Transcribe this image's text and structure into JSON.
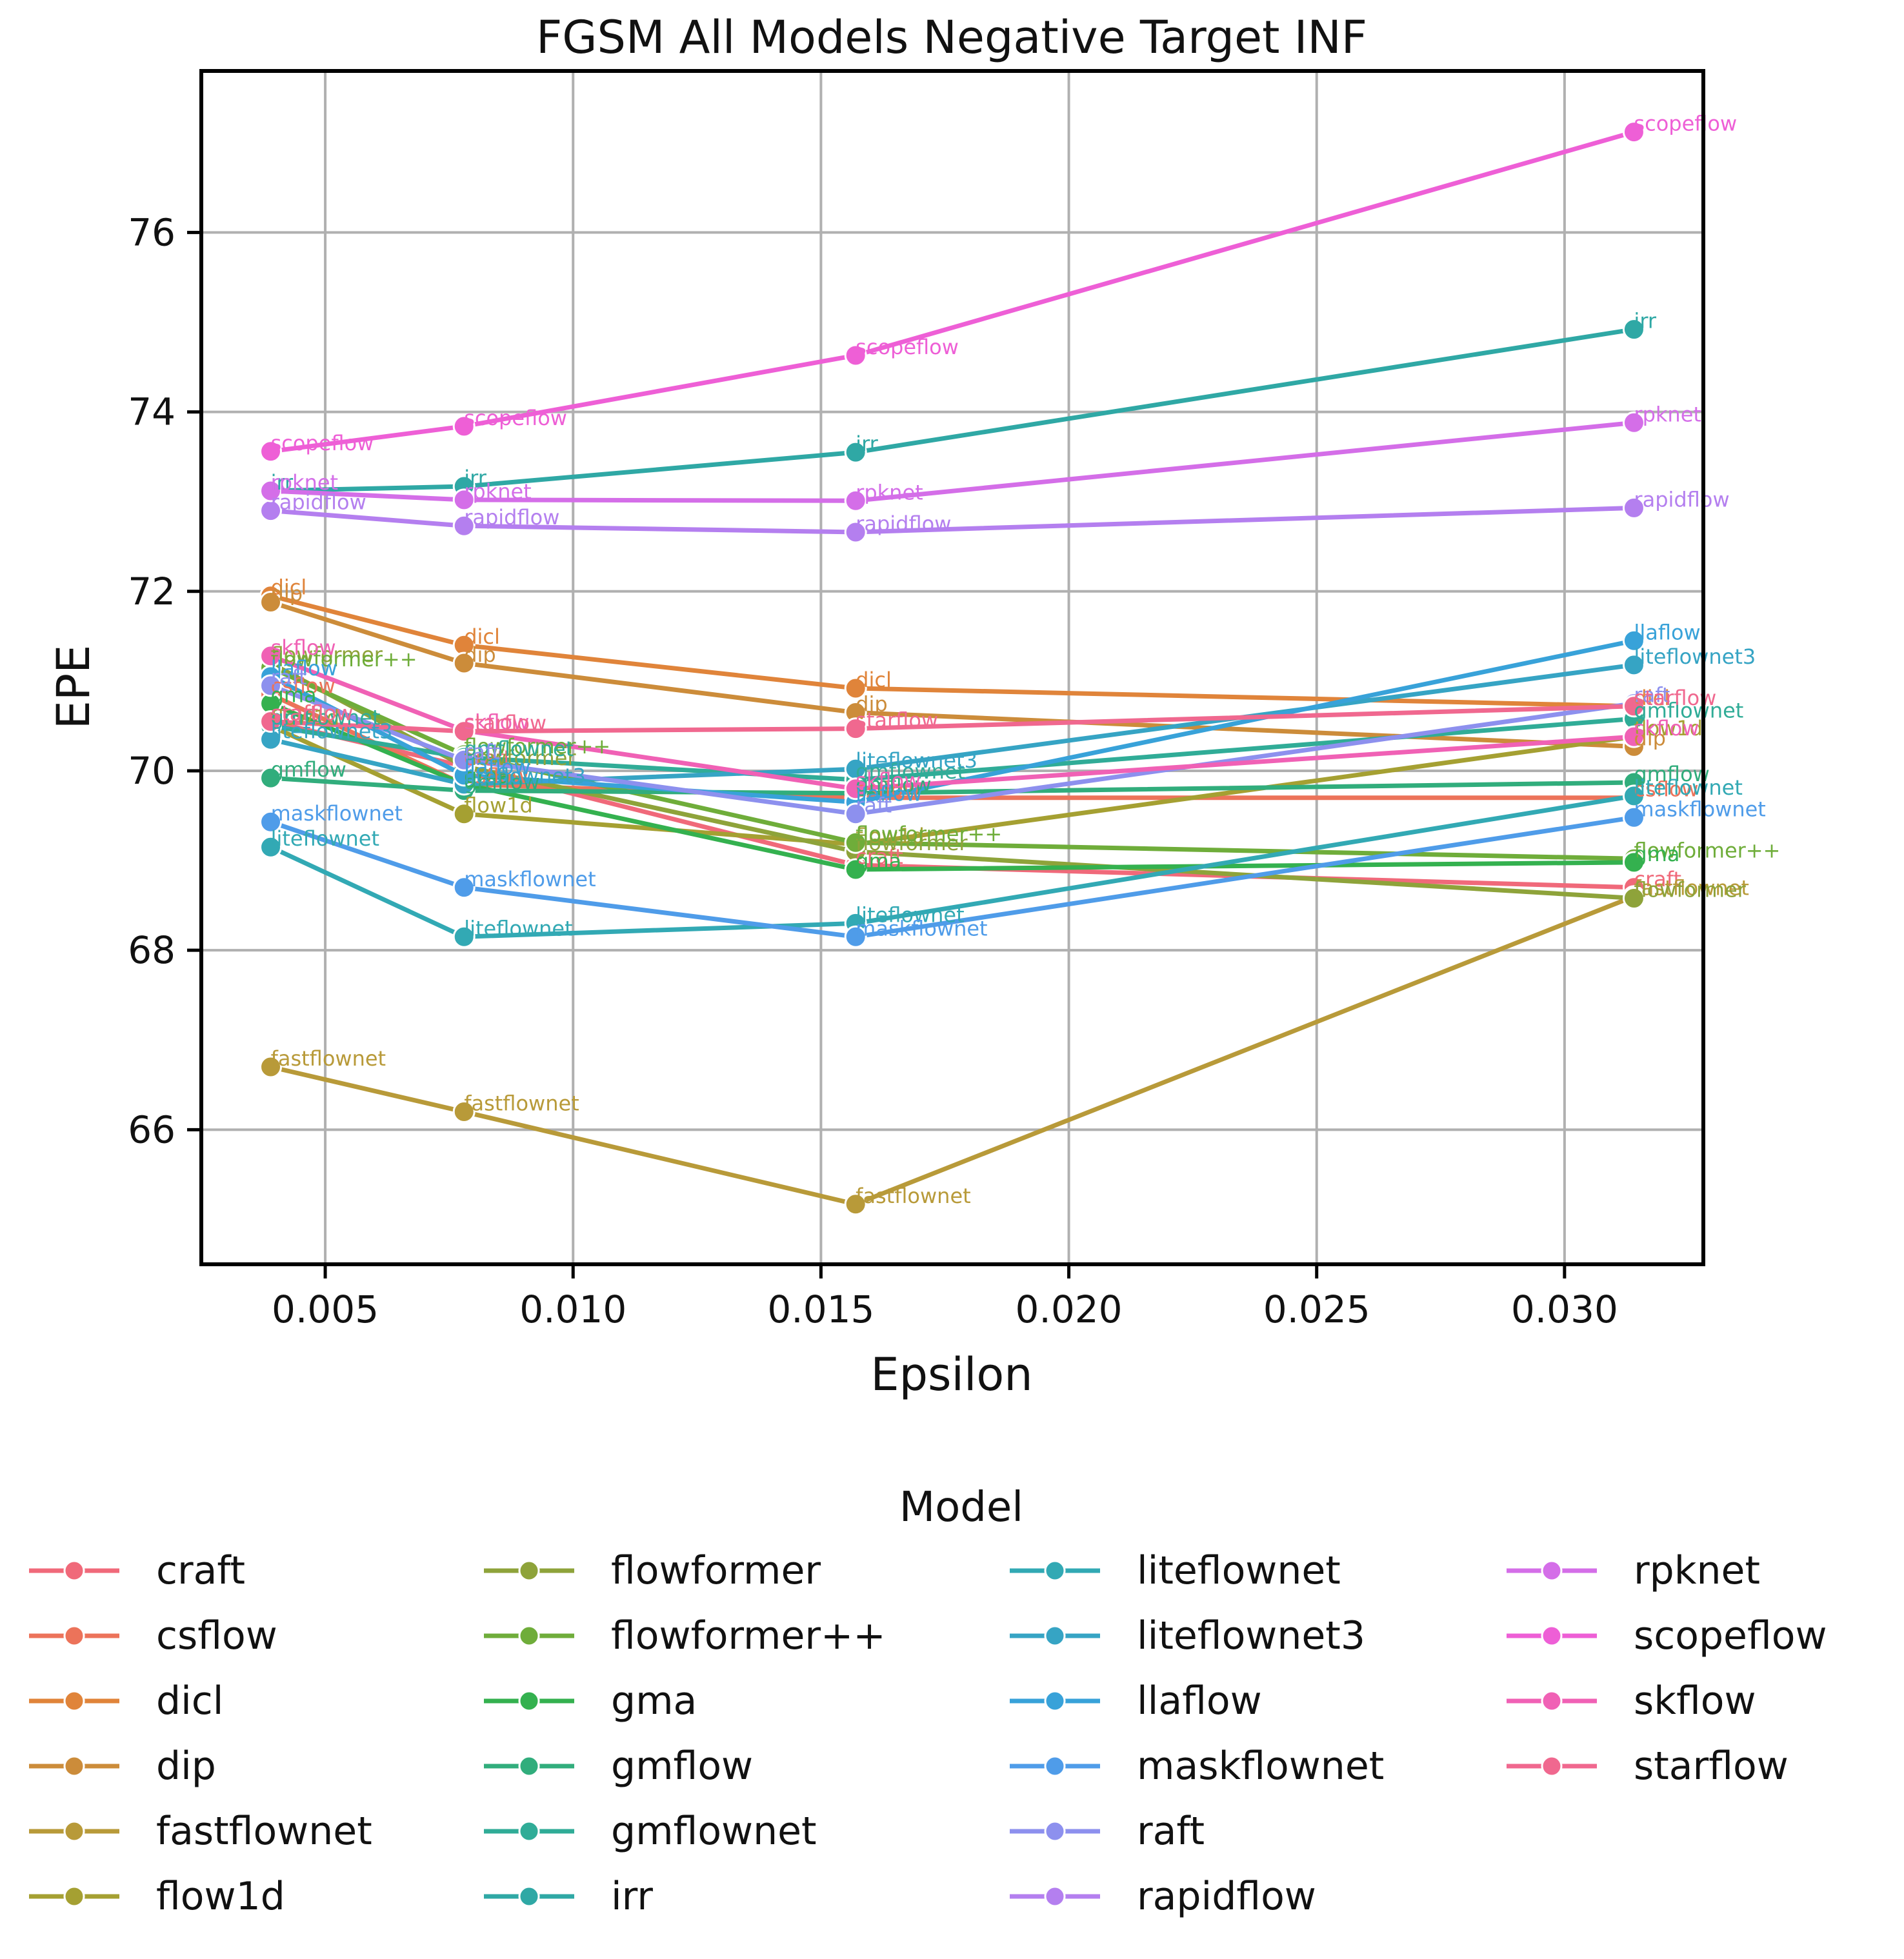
{
  "chart_data": {
    "type": "line",
    "title": "FGSM All Models Negative Target INF",
    "xlabel": "Epsilon",
    "ylabel": "EPE",
    "xlim": [
      0.0025,
      0.0328
    ],
    "ylim": [
      64.5,
      77.8
    ],
    "xticks": [
      0.005,
      0.01,
      0.015,
      0.02,
      0.025,
      0.03
    ],
    "xtick_labels": [
      "0.005",
      "0.010",
      "0.015",
      "0.020",
      "0.025",
      "0.030"
    ],
    "yticks": [
      66,
      68,
      70,
      72,
      74,
      76
    ],
    "ytick_labels": [
      "66",
      "68",
      "70",
      "72",
      "74",
      "76"
    ],
    "grid": true,
    "legend_position": "bottom",
    "legend_title": "Model",
    "x": [
      0.0039,
      0.0078,
      0.0157,
      0.0314
    ],
    "series": [
      {
        "name": "craft",
        "color": "#f0697a",
        "values": [
          70.55,
          70.05,
          68.95,
          68.7
        ]
      },
      {
        "name": "csflow",
        "color": "#ec735a",
        "values": [
          70.85,
          69.85,
          69.7,
          69.7
        ]
      },
      {
        "name": "dicl",
        "color": "#e0843a",
        "values": [
          71.95,
          71.4,
          70.92,
          70.72
        ]
      },
      {
        "name": "dip",
        "color": "#cc8c3a",
        "values": [
          71.88,
          71.2,
          70.65,
          70.27
        ]
      },
      {
        "name": "fastflownet",
        "color": "#b89a39",
        "values": [
          66.7,
          66.2,
          65.17,
          68.6
        ]
      },
      {
        "name": "flow1d",
        "color": "#a5a032",
        "values": [
          70.5,
          69.52,
          69.18,
          70.38
        ]
      },
      {
        "name": "flowformer",
        "color": "#8ea33a",
        "values": [
          71.2,
          70.05,
          69.1,
          68.58
        ]
      },
      {
        "name": "flowformer++",
        "color": "#6fad3a",
        "values": [
          71.15,
          70.18,
          69.2,
          69.02
        ]
      },
      {
        "name": "gma",
        "color": "#34b14f",
        "values": [
          70.75,
          69.85,
          68.9,
          68.98
        ]
      },
      {
        "name": "gmflow",
        "color": "#31ad7c",
        "values": [
          69.92,
          69.78,
          69.75,
          69.87
        ]
      },
      {
        "name": "gmflownet",
        "color": "#30ac97",
        "values": [
          70.5,
          70.15,
          69.9,
          70.58
        ]
      },
      {
        "name": "irr",
        "color": "#2fa8a5",
        "values": [
          73.12,
          73.17,
          73.55,
          74.92
        ]
      },
      {
        "name": "liteflownet",
        "color": "#32a9b4",
        "values": [
          69.15,
          68.15,
          68.3,
          69.72
        ]
      },
      {
        "name": "liteflownet3",
        "color": "#36a4c4",
        "values": [
          70.35,
          69.85,
          70.02,
          71.18
        ]
      },
      {
        "name": "llaflow",
        "color": "#38a2d9",
        "values": [
          71.05,
          69.95,
          69.65,
          71.45
        ]
      },
      {
        "name": "maskflownet",
        "color": "#4f9ce9",
        "values": [
          69.43,
          68.7,
          68.15,
          69.48
        ]
      },
      {
        "name": "raft",
        "color": "#8d90ee",
        "values": [
          70.95,
          70.12,
          69.52,
          70.75
        ]
      },
      {
        "name": "rapidflow",
        "color": "#b47fef",
        "values": [
          72.9,
          72.73,
          72.66,
          72.93
        ]
      },
      {
        "name": "rpknet",
        "color": "#d46ee8",
        "values": [
          73.12,
          73.02,
          73.01,
          73.88
        ]
      },
      {
        "name": "scopeflow",
        "color": "#ee5fd6",
        "values": [
          73.56,
          73.84,
          74.63,
          77.12
        ]
      },
      {
        "name": "skflow",
        "color": "#f061b5",
        "values": [
          71.28,
          70.45,
          69.8,
          70.38
        ]
      },
      {
        "name": "starflow",
        "color": "#f0688f",
        "values": [
          70.55,
          70.44,
          70.47,
          70.72
        ]
      }
    ]
  }
}
